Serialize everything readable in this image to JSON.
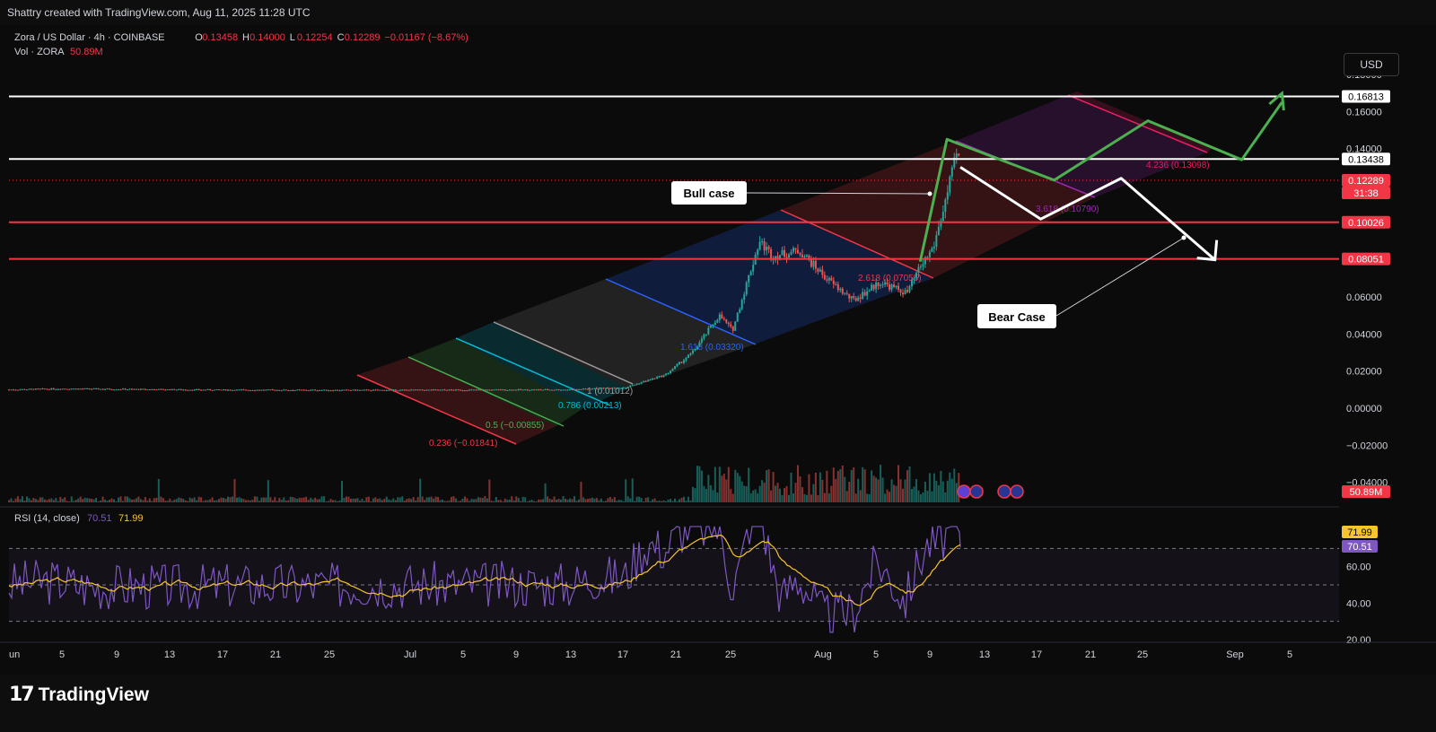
{
  "header": {
    "credit": "Shattry created with TradingView.com, Aug 11, 2025 11:28 UTC"
  },
  "legend": {
    "symbol": "Zora / US Dollar · 4h · COINBASE",
    "o_label": "O",
    "o_value": "0.13458",
    "h_label": "H",
    "h_value": "0.14000",
    "l_label": "L",
    "l_value": "0.12254",
    "c_label": "C",
    "c_value": "0.12289",
    "change": "−0.01167 (−8.67%)",
    "vol_label": "Vol · ZORA",
    "vol_value": "50.89M",
    "rsi_label": "RSI (14, close)",
    "rsi_value": "70.51",
    "rsi_ma_value": "71.99"
  },
  "currency_button": "USD",
  "price_axis": {
    "ticks": [
      "0.18000",
      "0.16000",
      "0.14000",
      "0.12000",
      "0.10000",
      "0.08000",
      "0.06000",
      "0.04000",
      "0.02000",
      "0.00000",
      "−0.02000",
      "−0.04000"
    ],
    "badges": [
      {
        "text": "0.16813",
        "bg": "#ffffff",
        "fg": "#000000"
      },
      {
        "text": "0.13438",
        "bg": "#ffffff",
        "fg": "#000000"
      },
      {
        "text": "0.12289",
        "bg": "#f23645",
        "fg": "#ffffff"
      },
      {
        "text": "31:38",
        "bg": "#f23645",
        "fg": "#ffffff"
      },
      {
        "text": "0.10026",
        "bg": "#f23645",
        "fg": "#ffffff"
      },
      {
        "text": "0.08051",
        "bg": "#f23645",
        "fg": "#ffffff"
      },
      {
        "text": "50.89M",
        "bg": "#f23645",
        "fg": "#ffffff"
      }
    ]
  },
  "rsi_axis": {
    "ticks": [
      "60.00",
      "40.00",
      "20.00"
    ],
    "badges": [
      {
        "text": "71.99",
        "bg": "#f7c42b",
        "fg": "#000000"
      },
      {
        "text": "70.51",
        "bg": "#7e57c2",
        "fg": "#ffffff"
      }
    ]
  },
  "time_axis": [
    "un",
    "5",
    "9",
    "13",
    "17",
    "21",
    "25",
    "Jul",
    "5",
    "9",
    "13",
    "17",
    "21",
    "25",
    "Aug",
    "5",
    "9",
    "13",
    "17",
    "21",
    "25",
    "Sep",
    "5"
  ],
  "annotations": {
    "bull": "Bull case",
    "bear": "Bear Case"
  },
  "fib_labels": [
    {
      "text": "0.236 (−0.01841)",
      "color": "#f23645"
    },
    {
      "text": "0.5 (−0.00855)",
      "color": "#4caf50"
    },
    {
      "text": "0.786 (0.00213)",
      "color": "#00bcd4"
    },
    {
      "text": "1 (0.01012)",
      "color": "#9e9e9e"
    },
    {
      "text": "1.618 (0.03320)",
      "color": "#2962ff"
    },
    {
      "text": "2.618 (0.07055)",
      "color": "#f23645"
    },
    {
      "text": "3.618 (0.10790)",
      "color": "#9c27b0"
    },
    {
      "text": "4.236 (0.13098)",
      "color": "#e91e63"
    }
  ],
  "colors": {
    "up": "#26a69a",
    "down": "#ef5350",
    "bull_path": "#4caf50",
    "bear_path": "#ffffff",
    "support": "#f23645",
    "resistance": "#ffffff",
    "rsi_line": "#7e57c2",
    "rsi_ma": "#f7c42b"
  },
  "brand": "TradingView",
  "chart_data": {
    "type": "candlestick",
    "price_ylim": [
      -0.045,
      0.19
    ],
    "horizontal_levels": [
      {
        "value": 0.16813,
        "color": "#ffffff"
      },
      {
        "value": 0.13438,
        "color": "#ffffff"
      },
      {
        "value": 0.10026,
        "color": "#f23645"
      },
      {
        "value": 0.08051,
        "color": "#f23645"
      }
    ],
    "price_path": [
      [
        "2025-06-01",
        0.01
      ],
      [
        "2025-06-05",
        0.0105
      ],
      [
        "2025-06-15",
        0.0099
      ],
      [
        "2025-06-25",
        0.0097
      ],
      [
        "2025-07-05",
        0.0098
      ],
      [
        "2025-07-13",
        0.01
      ],
      [
        "2025-07-17",
        0.0112
      ],
      [
        "2025-07-20",
        0.018
      ],
      [
        "2025-07-22",
        0.03
      ],
      [
        "2025-07-24",
        0.05
      ],
      [
        "2025-07-25",
        0.042
      ],
      [
        "2025-07-27",
        0.09
      ],
      [
        "2025-07-28",
        0.082
      ],
      [
        "2025-07-30",
        0.085
      ],
      [
        "2025-08-01",
        0.07
      ],
      [
        "2025-08-03",
        0.058
      ],
      [
        "2025-08-05",
        0.068
      ],
      [
        "2025-08-07",
        0.062
      ],
      [
        "2025-08-08",
        0.076
      ],
      [
        "2025-08-09",
        0.087
      ],
      [
        "2025-08-10",
        0.115
      ],
      [
        "2025-08-10T20",
        0.14
      ],
      [
        "2025-08-11",
        0.1229
      ]
    ],
    "bull_case_path": [
      [
        "2025-08-08",
        0.079
      ],
      [
        "2025-08-10",
        0.145
      ],
      [
        "2025-08-18",
        0.123
      ],
      [
        "2025-08-25",
        0.155
      ],
      [
        "2025-09-01",
        0.134
      ],
      [
        "2025-09-04",
        0.165
      ]
    ],
    "bear_case_path": [
      [
        "2025-08-11",
        0.13
      ],
      [
        "2025-08-17",
        0.102
      ],
      [
        "2025-08-23",
        0.124
      ],
      [
        "2025-08-30",
        0.08
      ]
    ],
    "rsi": {
      "last": 70.51,
      "ma_last": 71.99,
      "ylim": [
        20,
        80
      ],
      "bands": [
        70,
        50,
        30
      ]
    },
    "volume_last": "50.89M"
  }
}
